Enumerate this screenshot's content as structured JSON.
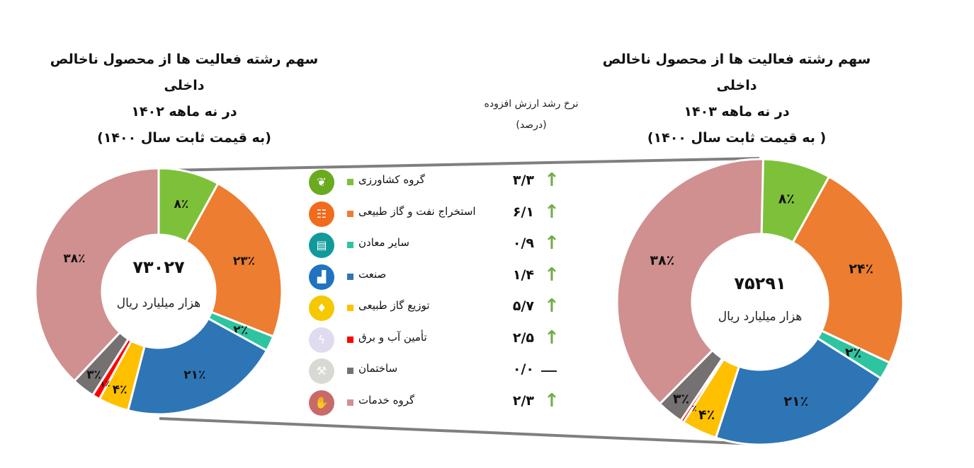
{
  "column_header": {
    "line1": "نرخ رشد ارزش افزوده",
    "line2": "(درصد)"
  },
  "colors": {
    "connector": "#7f7f7f",
    "up_arrow": "#70ad47"
  },
  "chart_data": [
    {
      "type": "pie",
      "variant": "donut",
      "title": [
        "سهم رشته فعالیت ها از محصول ناخالص داخلی",
        "در نه ماهه ۱۴۰۲",
        "(به قیمت ثابت سال ۱۴۰۰)"
      ],
      "center_value": "۷۳۰۲۷",
      "center_unit": "هزار میلیارد ریال",
      "categories": [
        "گروه کشاورزی",
        "استخراج نفت و گاز طبیعی",
        "سایر معادن",
        "صنعت",
        "توزیع گاز طبیعی",
        "تأمین آب و برق",
        "ساختمان",
        "گروه خدمات"
      ],
      "values": [
        8,
        23,
        2,
        21,
        4,
        1,
        3,
        38
      ],
      "labels": [
        "۸٪",
        "۲۳٪",
        "۲٪",
        "۲۱٪",
        "۴٪",
        "۱٪",
        "۳٪",
        "۳۸٪"
      ]
    },
    {
      "type": "pie",
      "variant": "donut",
      "title": [
        "سهم رشته فعالیت ها از محصول ناخالص داخلی",
        "در نه ماهه ۱۴۰۳",
        "( به قیمت ثابت سال ۱۴۰۰)"
      ],
      "center_value": "۷۵۲۹۱",
      "center_unit": "هزار میلیارد ریال",
      "categories": [
        "گروه کشاورزی",
        "استخراج نفت و گاز طبیعی",
        "سایر معادن",
        "صنعت",
        "توزیع گاز طبیعی",
        "تأمین آب و برق",
        "ساختمان",
        "گروه خدمات"
      ],
      "values": [
        8,
        24,
        2,
        21,
        4,
        0,
        3,
        38
      ],
      "labels": [
        "۸٪",
        "۲۴٪",
        "۲٪",
        "۲۱٪",
        "۴٪",
        "۰٪",
        "۳٪",
        "۳۸٪"
      ]
    }
  ],
  "legend": [
    {
      "label": "گروه کشاورزی",
      "color": "#7dc13a",
      "icon": "wheat-icon",
      "icon_color": "#6aaa1f",
      "growth": "۳/۳",
      "trend": "up"
    },
    {
      "label": "استخراج نفت و گاز طبیعی",
      "color": "#ed7d31",
      "icon": "oil-barrels-icon",
      "icon_color": "#f26b1d",
      "growth": "۶/۱",
      "trend": "up"
    },
    {
      "label": "سایر معادن",
      "color": "#2ec4a0",
      "icon": "mine-cart-icon",
      "icon_color": "#119a9a",
      "growth": "۰/۹",
      "trend": "up"
    },
    {
      "label": "صنعت",
      "color": "#2e75b6",
      "icon": "factory-icon",
      "icon_color": "#1f73c0",
      "growth": "۱/۴",
      "trend": "up"
    },
    {
      "label": "توزیع گاز طبیعی",
      "color": "#ffc000",
      "icon": "gas-icon",
      "icon_color": "#f5c800",
      "growth": "۵/۷",
      "trend": "up"
    },
    {
      "label": "تأمین آب و برق",
      "color": "#ff0000",
      "icon": "water-electricity-icon",
      "icon_color": "#e0dbef",
      "growth": "۲/۵",
      "trend": "up"
    },
    {
      "label": "ساختمان",
      "color": "#767171",
      "icon": "construction-icon",
      "icon_color": "#d9d9d4",
      "growth": "۰/۰",
      "trend": "flat"
    },
    {
      "label": "گروه خدمات",
      "color": "#d09090",
      "icon": "services-hand-icon",
      "icon_color": "#c96a6a",
      "growth": "۲/۳",
      "trend": "up"
    }
  ]
}
